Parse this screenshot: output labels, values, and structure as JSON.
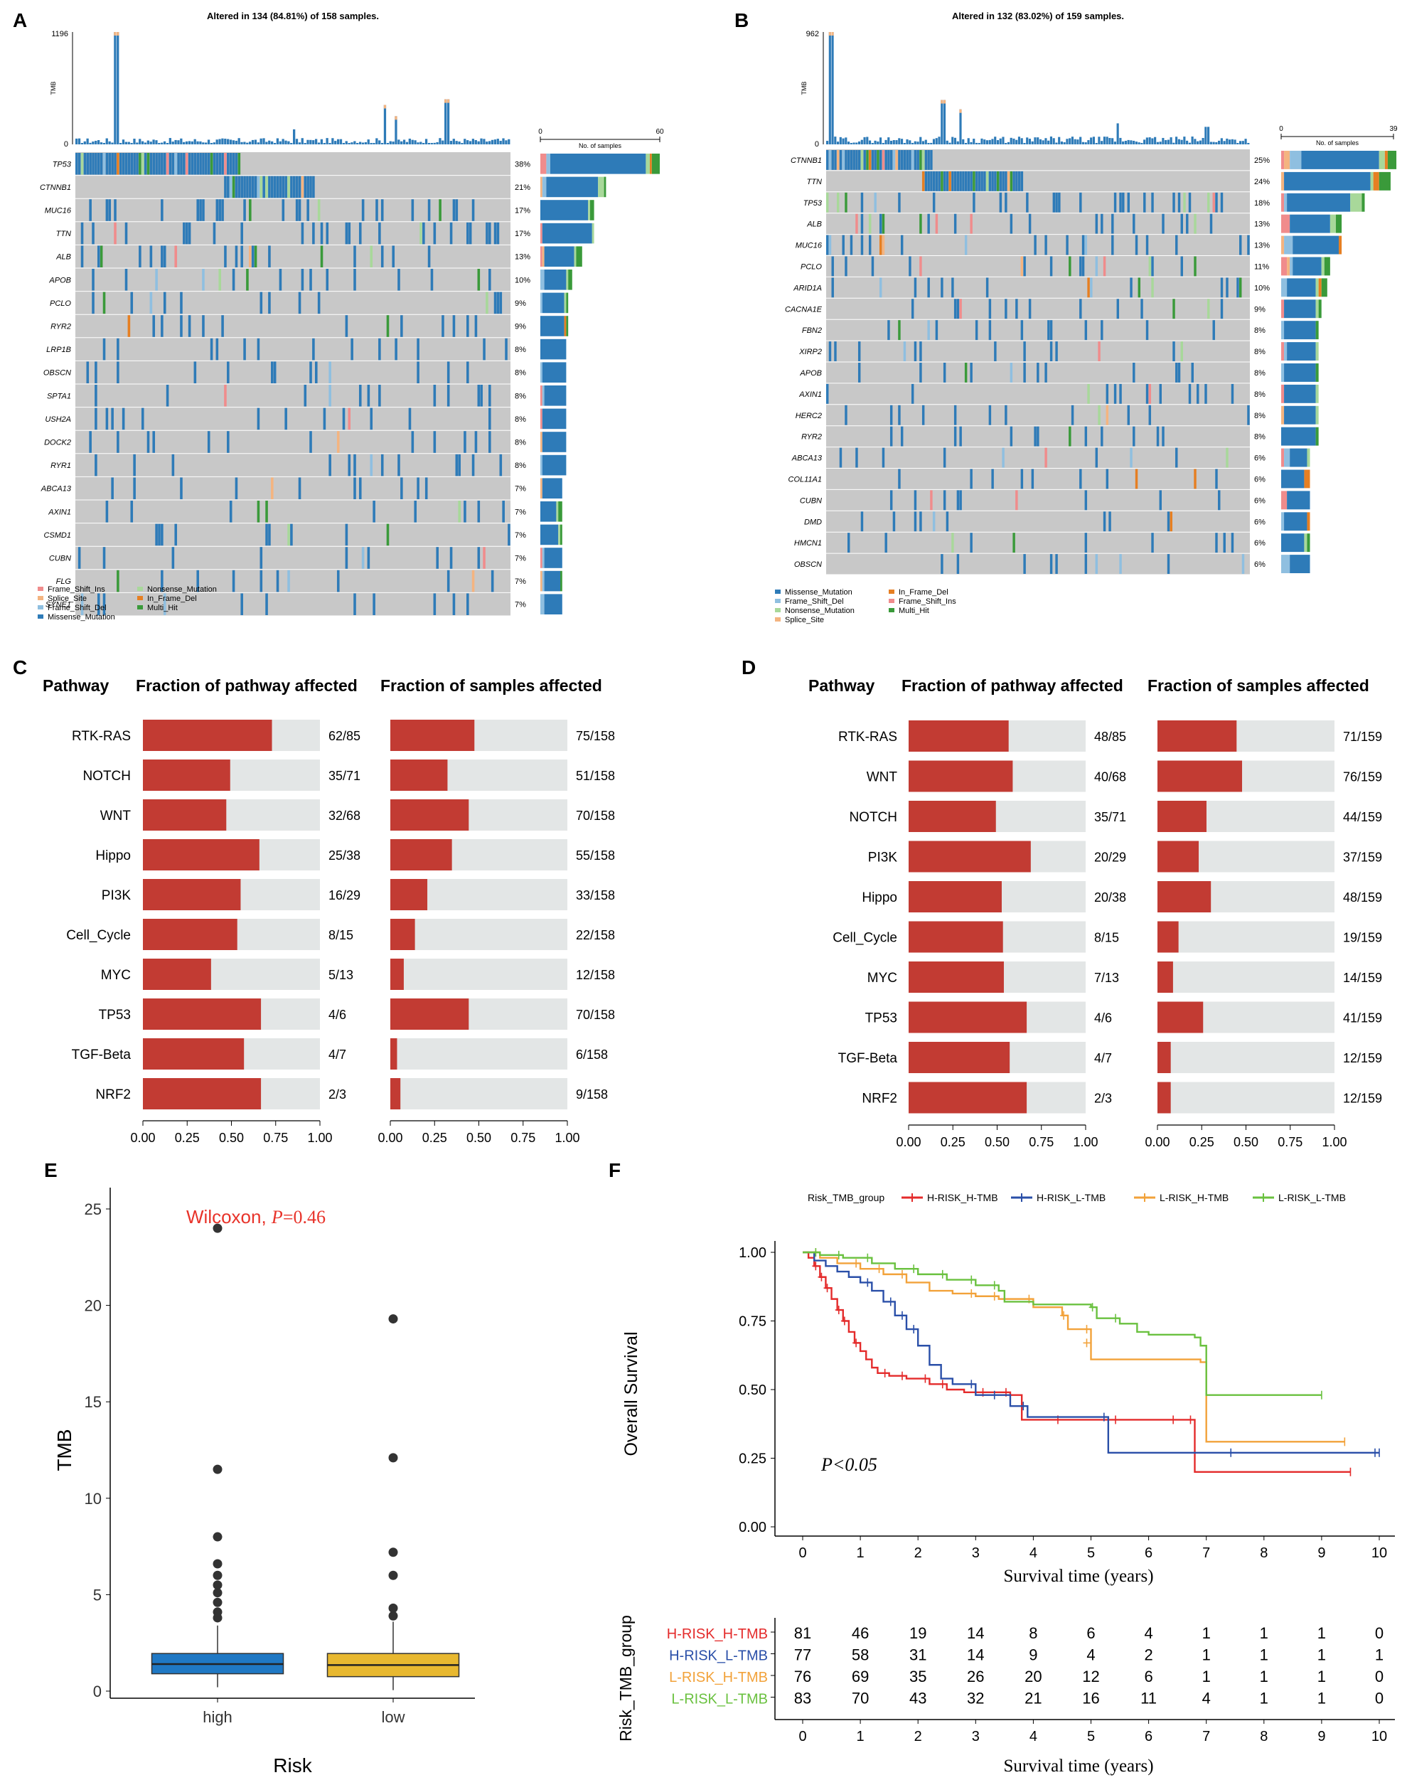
{
  "panel_letters": [
    "A",
    "B",
    "C",
    "D",
    "E",
    "F"
  ],
  "colors": {
    "missense": "#2e7bb8",
    "frame_shift_del": "#8fbfe0",
    "frame_shift_ins": "#f08c8c",
    "splice_site": "#f4b480",
    "nonsense": "#a8d89a",
    "in_frame_del": "#e67f22",
    "multi_hit": "#3a9a3a",
    "grey_cell": "#c8c8c8",
    "pathway_red": "#c23b33",
    "pathway_bg": "#e3e6e6",
    "box_high": "#1f78c4",
    "box_low": "#e8b830",
    "km_h_h": "#e42b2b",
    "km_h_l": "#2a4fa8",
    "km_l_h": "#f2a23a",
    "km_l_l": "#6ac13f"
  },
  "chart_data": [
    {
      "type": "heatmap",
      "panel": "A",
      "title": "Altered in 134 (84.81%) of 158 samples.",
      "tmb_axis_label": "TMB",
      "tmb_ylim": [
        0,
        1196
      ],
      "tmb_ticks": [
        "1196",
        "0"
      ],
      "samples_axis_label": "No. of samples",
      "samples_ticks": [
        "0",
        "60"
      ],
      "samples_max": 60,
      "n_samples": 158,
      "genes": [
        "TP53",
        "CTNNB1",
        "MUC16",
        "TTN",
        "ALB",
        "APOB",
        "PCLO",
        "RYR2",
        "LRP1B",
        "OBSCN",
        "SPTA1",
        "USH2A",
        "DOCK2",
        "RYR1",
        "ABCA13",
        "AXIN1",
        "CSMD1",
        "CUBN",
        "FLG",
        "SYNE1"
      ],
      "percents": [
        "38%",
        "21%",
        "17%",
        "17%",
        "13%",
        "10%",
        "9%",
        "9%",
        "8%",
        "8%",
        "8%",
        "8%",
        "8%",
        "8%",
        "7%",
        "7%",
        "7%",
        "7%",
        "7%",
        "7%"
      ],
      "legend": [
        {
          "label": "Frame_Shift_Ins",
          "key": "frame_shift_ins"
        },
        {
          "label": "Splice_Site",
          "key": "splice_site"
        },
        {
          "label": "Frame_Shift_Del",
          "key": "frame_shift_del"
        },
        {
          "label": "Missense_Mutation",
          "key": "missense"
        },
        {
          "label": "Nonsense_Mutation",
          "key": "nonsense"
        },
        {
          "label": "In_Frame_Del",
          "key": "in_frame_del"
        },
        {
          "label": "Multi_Hit",
          "key": "multi_hit"
        }
      ],
      "tmb_peaks": [
        {
          "x": 0.091,
          "v": 1196
        },
        {
          "x": 0.708,
          "v": 420
        },
        {
          "x": 0.852,
          "v": 480
        },
        {
          "x": 0.735,
          "v": 300
        },
        {
          "x": 0.5,
          "v": 160
        }
      ]
    },
    {
      "type": "heatmap",
      "panel": "B",
      "title": "Altered in 132 (83.02%) of 159 samples.",
      "tmb_axis_label": "TMB",
      "tmb_ylim": [
        0,
        962
      ],
      "tmb_ticks": [
        "962",
        "0"
      ],
      "samples_axis_label": "No. of samples",
      "samples_ticks": [
        "0",
        "39"
      ],
      "samples_max": 39,
      "n_samples": 159,
      "genes": [
        "CTNNB1",
        "TTN",
        "TP53",
        "ALB",
        "MUC16",
        "PCLO",
        "ARID1A",
        "CACNA1E",
        "FBN2",
        "XIRP2",
        "APOB",
        "AXIN1",
        "HERC2",
        "RYR2",
        "ABCA13",
        "COL11A1",
        "CUBN",
        "DMD",
        "HMCN1",
        "OBSCN"
      ],
      "percents": [
        "25%",
        "24%",
        "18%",
        "13%",
        "13%",
        "11%",
        "10%",
        "9%",
        "8%",
        "8%",
        "8%",
        "8%",
        "8%",
        "8%",
        "6%",
        "6%",
        "6%",
        "6%",
        "6%",
        "6%"
      ],
      "legend": [
        {
          "label": "Missense_Mutation",
          "key": "missense"
        },
        {
          "label": "Frame_Shift_Del",
          "key": "frame_shift_del"
        },
        {
          "label": "Nonsense_Mutation",
          "key": "nonsense"
        },
        {
          "label": "Splice_Site",
          "key": "splice_site"
        },
        {
          "label": "In_Frame_Del",
          "key": "in_frame_del"
        },
        {
          "label": "Frame_Shift_Ins",
          "key": "frame_shift_ins"
        },
        {
          "label": "Multi_Hit",
          "key": "multi_hit"
        }
      ],
      "tmb_peaks": [
        {
          "x": 0.01,
          "v": 962
        },
        {
          "x": 0.275,
          "v": 380
        },
        {
          "x": 0.315,
          "v": 300
        },
        {
          "x": 0.685,
          "v": 180
        },
        {
          "x": 0.895,
          "v": 150
        }
      ]
    },
    {
      "type": "bar",
      "panel": "C",
      "headers": [
        "Pathway",
        "Fraction of pathway affected",
        "Fraction of samples affected"
      ],
      "categories": [
        "RTK-RAS",
        "NOTCH",
        "WNT",
        "Hippo",
        "PI3K",
        "Cell_Cycle",
        "MYC",
        "TP53",
        "TGF-Beta",
        "NRF2"
      ],
      "pathway_labels": [
        "62/85",
        "35/71",
        "32/68",
        "25/38",
        "16/29",
        "8/15",
        "5/13",
        "4/6",
        "4/7",
        "2/3"
      ],
      "pathway_values": [
        0.729,
        0.493,
        0.471,
        0.658,
        0.552,
        0.533,
        0.385,
        0.667,
        0.571,
        0.667
      ],
      "sample_labels": [
        "75/158",
        "51/158",
        "70/158",
        "55/158",
        "33/158",
        "22/158",
        "12/158",
        "70/158",
        "6/158",
        "9/158"
      ],
      "sample_values": [
        0.475,
        0.323,
        0.443,
        0.348,
        0.209,
        0.139,
        0.076,
        0.443,
        0.038,
        0.057
      ],
      "xticks": [
        "0.00",
        "0.25",
        "0.50",
        "0.75",
        "1.00"
      ],
      "xlim": [
        0,
        1
      ]
    },
    {
      "type": "bar",
      "panel": "D",
      "headers": [
        "Pathway",
        "Fraction of pathway affected",
        "Fraction of samples affected"
      ],
      "categories": [
        "RTK-RAS",
        "WNT",
        "NOTCH",
        "PI3K",
        "Hippo",
        "Cell_Cycle",
        "MYC",
        "TP53",
        "TGF-Beta",
        "NRF2"
      ],
      "pathway_labels": [
        "48/85",
        "40/68",
        "35/71",
        "20/29",
        "20/38",
        "8/15",
        "7/13",
        "4/6",
        "4/7",
        "2/3"
      ],
      "pathway_values": [
        0.565,
        0.588,
        0.493,
        0.69,
        0.526,
        0.533,
        0.538,
        0.667,
        0.571,
        0.667
      ],
      "sample_labels": [
        "71/159",
        "76/159",
        "44/159",
        "37/159",
        "48/159",
        "19/159",
        "14/159",
        "41/159",
        "12/159",
        "12/159"
      ],
      "sample_values": [
        0.447,
        0.478,
        0.277,
        0.233,
        0.302,
        0.119,
        0.088,
        0.258,
        0.075,
        0.075
      ],
      "xticks": [
        "0.00",
        "0.25",
        "0.50",
        "0.75",
        "1.00"
      ],
      "xlim": [
        0,
        1
      ]
    },
    {
      "type": "box",
      "panel": "E",
      "annotation_prefix": "Wilcoxon, ",
      "annotation_p": "P",
      "annotation_value": "=0.46",
      "xlabel": "Risk",
      "ylabel": "TMB",
      "ylim": [
        0,
        25
      ],
      "yticks": [
        "0",
        "5",
        "10",
        "15",
        "20",
        "25"
      ],
      "groups": [
        {
          "name": "high",
          "q1": 0.9,
          "median": 1.4,
          "q3": 1.95,
          "whisker_low": 0.2,
          "whisker_high": 3.4,
          "outliers": [
            3.8,
            4.1,
            4.6,
            5.1,
            5.5,
            6.0,
            6.6,
            8.0,
            11.5,
            24.0
          ]
        },
        {
          "name": "low",
          "q1": 0.75,
          "median": 1.35,
          "q3": 1.95,
          "whisker_low": 0.05,
          "whisker_high": 3.6,
          "outliers": [
            3.9,
            4.3,
            6.0,
            7.2,
            12.1,
            19.3
          ]
        }
      ]
    },
    {
      "type": "line",
      "panel": "F",
      "legend_title": "Risk_TMB_group",
      "ylabel": "Overall Survival",
      "xlabel": "Survival time (years)",
      "annotation": "P<0.05",
      "xlim": [
        0,
        10
      ],
      "ylim": [
        0,
        1
      ],
      "xticks": [
        "0",
        "1",
        "2",
        "3",
        "4",
        "5",
        "6",
        "7",
        "8",
        "9",
        "10"
      ],
      "yticks": [
        "0.00",
        "0.25",
        "0.50",
        "0.75",
        "1.00"
      ],
      "series": [
        {
          "name": "H-RISK_H-TMB",
          "key": "km_h_h",
          "points": [
            [
              0,
              1
            ],
            [
              0.1,
              0.98
            ],
            [
              0.2,
              0.95
            ],
            [
              0.3,
              0.91
            ],
            [
              0.4,
              0.87
            ],
            [
              0.5,
              0.83
            ],
            [
              0.6,
              0.79
            ],
            [
              0.7,
              0.75
            ],
            [
              0.8,
              0.71
            ],
            [
              0.9,
              0.67
            ],
            [
              1.0,
              0.64
            ],
            [
              1.1,
              0.61
            ],
            [
              1.2,
              0.58
            ],
            [
              1.3,
              0.56
            ],
            [
              1.5,
              0.55
            ],
            [
              1.8,
              0.54
            ],
            [
              2.2,
              0.52
            ],
            [
              2.5,
              0.5
            ],
            [
              2.8,
              0.49
            ],
            [
              3.2,
              0.49
            ],
            [
              3.5,
              0.49
            ],
            [
              3.6,
              0.48
            ],
            [
              3.8,
              0.39
            ],
            [
              4.5,
              0.39
            ],
            [
              5.5,
              0.39
            ],
            [
              6.5,
              0.39
            ],
            [
              6.8,
              0.39
            ],
            [
              6.8,
              0.2
            ],
            [
              9.5,
              0.2
            ]
          ]
        },
        {
          "name": "H-RISK_L-TMB",
          "key": "km_h_l",
          "points": [
            [
              0,
              1
            ],
            [
              0.2,
              0.97
            ],
            [
              0.4,
              0.95
            ],
            [
              0.6,
              0.93
            ],
            [
              0.8,
              0.91
            ],
            [
              1.0,
              0.89
            ],
            [
              1.2,
              0.86
            ],
            [
              1.4,
              0.82
            ],
            [
              1.6,
              0.77
            ],
            [
              1.8,
              0.72
            ],
            [
              2.0,
              0.66
            ],
            [
              2.2,
              0.59
            ],
            [
              2.4,
              0.54
            ],
            [
              2.6,
              0.52
            ],
            [
              3.0,
              0.48
            ],
            [
              3.4,
              0.48
            ],
            [
              3.6,
              0.44
            ],
            [
              3.9,
              0.4
            ],
            [
              4.5,
              0.4
            ],
            [
              5.3,
              0.39
            ],
            [
              5.3,
              0.27
            ],
            [
              7.5,
              0.27
            ],
            [
              10.0,
              0.27
            ]
          ]
        },
        {
          "name": "L-RISK_H-TMB",
          "key": "km_l_h",
          "points": [
            [
              0,
              1
            ],
            [
              0.3,
              0.98
            ],
            [
              0.6,
              0.96
            ],
            [
              1.0,
              0.94
            ],
            [
              1.4,
              0.92
            ],
            [
              1.8,
              0.89
            ],
            [
              2.2,
              0.86
            ],
            [
              2.6,
              0.85
            ],
            [
              3.0,
              0.84
            ],
            [
              3.4,
              0.83
            ],
            [
              4.0,
              0.8
            ],
            [
              4.5,
              0.77
            ],
            [
              4.6,
              0.77
            ],
            [
              4.6,
              0.72
            ],
            [
              5.0,
              0.67
            ],
            [
              5.0,
              0.61
            ],
            [
              6.5,
              0.61
            ],
            [
              6.9,
              0.6
            ],
            [
              7.0,
              0.31
            ],
            [
              9.4,
              0.31
            ]
          ]
        },
        {
          "name": "L-RISK_L-TMB",
          "key": "km_l_l",
          "points": [
            [
              0,
              1
            ],
            [
              0.3,
              0.99
            ],
            [
              0.7,
              0.98
            ],
            [
              1.2,
              0.96
            ],
            [
              1.6,
              0.94
            ],
            [
              2.0,
              0.92
            ],
            [
              2.5,
              0.9
            ],
            [
              3.0,
              0.88
            ],
            [
              3.4,
              0.86
            ],
            [
              3.5,
              0.82
            ],
            [
              4.0,
              0.81
            ],
            [
              5.0,
              0.8
            ],
            [
              5.1,
              0.76
            ],
            [
              5.5,
              0.74
            ],
            [
              5.8,
              0.71
            ],
            [
              6.0,
              0.7
            ],
            [
              6.8,
              0.69
            ],
            [
              6.9,
              0.66
            ],
            [
              7.0,
              0.48
            ],
            [
              9.0,
              0.48
            ]
          ]
        }
      ],
      "risk_table": {
        "title": "Risk_TMB_group",
        "xlabel": "Survival time (years)",
        "rows": [
          {
            "name": "H-RISK_H-TMB",
            "key": "km_h_h",
            "counts": [
              "81",
              "46",
              "19",
              "14",
              "8",
              "6",
              "4",
              "1",
              "1",
              "1",
              "0"
            ]
          },
          {
            "name": "H-RISK_L-TMB",
            "key": "km_h_l",
            "counts": [
              "77",
              "58",
              "31",
              "14",
              "9",
              "4",
              "2",
              "1",
              "1",
              "1",
              "1"
            ]
          },
          {
            "name": "L-RISK_H-TMB",
            "key": "km_l_h",
            "counts": [
              "76",
              "69",
              "35",
              "26",
              "20",
              "12",
              "6",
              "1",
              "1",
              "1",
              "0"
            ]
          },
          {
            "name": "L-RISK_L-TMB",
            "key": "km_l_l",
            "counts": [
              "83",
              "70",
              "43",
              "32",
              "21",
              "16",
              "11",
              "4",
              "1",
              "1",
              "0"
            ]
          }
        ]
      }
    }
  ]
}
